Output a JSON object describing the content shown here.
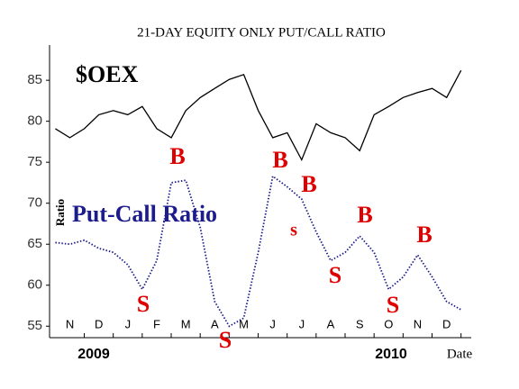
{
  "chart_data": {
    "type": "line",
    "title": "21-DAY EQUITY ONLY PUT/CALL RATIO",
    "y_label": "Ratio",
    "x_label": "Date",
    "year_labels": [
      "2009",
      "2010"
    ],
    "x": [
      -0.5,
      0,
      0.5,
      1,
      1.5,
      2,
      2.5,
      3,
      3.5,
      4,
      4.5,
      5,
      5.5,
      6,
      6.5,
      7,
      7.5,
      8,
      8.5,
      9,
      9.5,
      10,
      10.5,
      11,
      11.5,
      12,
      12.5,
      13,
      13.5
    ],
    "series": [
      {
        "name": "$OEX",
        "color": "#000000",
        "style": "solid",
        "values": [
          79.1,
          78,
          79.1,
          80.8,
          81.3,
          80.8,
          81.8,
          79.1,
          78,
          81.3,
          82.9,
          84,
          85.1,
          85.7,
          81.3,
          78,
          78.6,
          75.3,
          79.7,
          78.6,
          78,
          76.4,
          80.8,
          81.8,
          82.9,
          83.5,
          84,
          82.9,
          86.2
        ]
      },
      {
        "name": "Put-Call Ratio",
        "color": "#1c1c8c",
        "style": "dotted",
        "values": [
          65.2,
          65,
          65.5,
          64.5,
          64,
          62.5,
          59.5,
          63,
          72.5,
          72.8,
          67,
          58,
          55,
          56,
          64,
          73.3,
          72,
          70.5,
          66.5,
          63,
          64,
          66,
          64,
          59.5,
          61,
          63.7,
          61,
          58,
          57
        ]
      }
    ],
    "annotations": [
      "B",
      "S",
      "S",
      "B",
      "B",
      "s",
      "S",
      "B",
      "S",
      "B"
    ],
    "annotation_color": "#e00000",
    "xlim": [
      -0.7,
      13.85
    ],
    "xticks": [
      {
        "value": 0,
        "label": "N"
      },
      {
        "value": 1,
        "label": "D"
      },
      {
        "value": 2,
        "label": "J"
      },
      {
        "value": 3,
        "label": "F"
      },
      {
        "value": 4,
        "label": "M"
      },
      {
        "value": 5,
        "label": "A"
      },
      {
        "value": 6,
        "label": "M"
      },
      {
        "value": 7,
        "label": "J"
      },
      {
        "value": 8,
        "label": "J"
      },
      {
        "value": 9,
        "label": "A"
      },
      {
        "value": 10,
        "label": "S"
      },
      {
        "value": 11,
        "label": "O"
      },
      {
        "value": 12,
        "label": "N"
      },
      {
        "value": 13,
        "label": "D"
      }
    ],
    "ylim": [
      53.6,
      89.3
    ],
    "yticks": [
      55,
      60,
      65,
      70,
      75,
      80,
      85
    ]
  }
}
